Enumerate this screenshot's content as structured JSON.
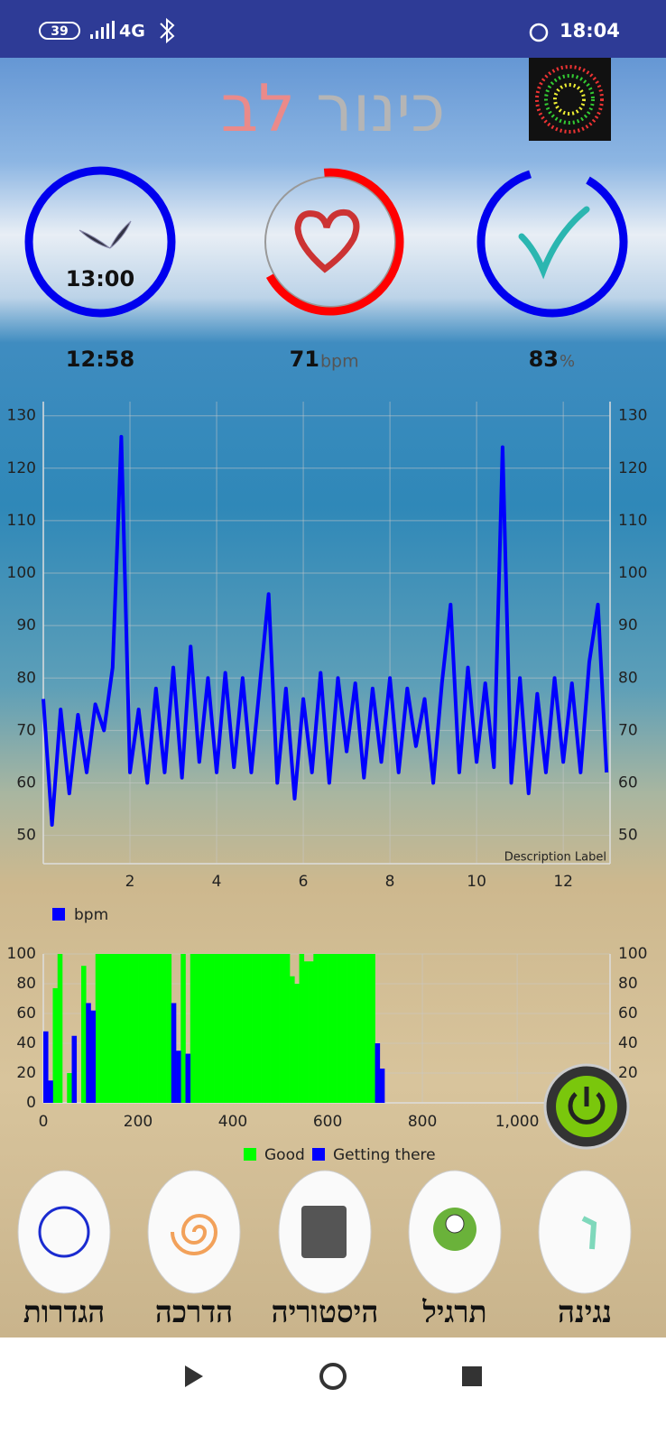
{
  "status_bar": {
    "battery": "39",
    "network": "4G",
    "time": "18:04"
  },
  "header": {
    "title_word1": "כינור",
    "title_word2": "לב"
  },
  "gauges": {
    "clock_label": "13:00",
    "clock_value": "12:58",
    "heart_value": 71,
    "heart_unit": "bpm",
    "check_value": 83,
    "check_unit": "%"
  },
  "chart_data": [
    {
      "type": "line",
      "x": [
        0,
        0.2,
        0.4,
        0.6,
        0.8,
        1.0,
        1.2,
        1.4,
        1.6,
        1.8,
        2.0,
        2.2,
        2.4,
        2.6,
        2.8,
        3.0,
        3.2,
        3.4,
        3.6,
        3.8,
        4.0,
        4.2,
        4.4,
        4.6,
        4.8,
        5.0,
        5.2,
        5.4,
        5.6,
        5.8,
        6.0,
        6.2,
        6.4,
        6.6,
        6.8,
        7.0,
        7.2,
        7.4,
        7.6,
        7.8,
        8.0,
        8.2,
        8.4,
        8.6,
        8.8,
        9.0,
        9.2,
        9.4,
        9.6,
        9.8,
        10.0,
        10.2,
        10.4,
        10.6,
        10.8,
        11.0,
        11.2,
        11.4,
        11.6,
        11.8,
        12.0,
        12.2,
        12.4,
        12.6,
        12.8,
        13.0
      ],
      "series": [
        {
          "name": "bpm",
          "color": "#0000ff",
          "values": [
            76,
            52,
            74,
            58,
            73,
            62,
            75,
            70,
            82,
            126,
            62,
            74,
            60,
            78,
            62,
            82,
            61,
            86,
            64,
            80,
            62,
            81,
            63,
            80,
            62,
            79,
            96,
            60,
            78,
            57,
            76,
            62,
            81,
            60,
            80,
            66,
            79,
            61,
            78,
            64,
            80,
            62,
            78,
            67,
            76,
            60,
            79,
            94,
            62,
            82,
            64,
            79,
            63,
            124,
            60,
            80,
            58,
            77,
            62,
            80,
            64,
            79,
            62,
            83,
            94,
            62
          ]
        }
      ],
      "xlim": [
        0,
        13.08
      ],
      "ylim": [
        44.6,
        132.7
      ],
      "xticks": [
        2,
        4,
        6,
        8,
        10,
        12
      ],
      "yticks": [
        50,
        60,
        70,
        80,
        90,
        100,
        110,
        120,
        130
      ],
      "grid": true,
      "description": "Description Label",
      "legend": "bottom-left"
    },
    {
      "type": "bar",
      "x": [
        0,
        10,
        20,
        30,
        40,
        50,
        60,
        70,
        80,
        90,
        100,
        110,
        120,
        130,
        140,
        150,
        160,
        170,
        180,
        190,
        200,
        210,
        220,
        230,
        240,
        250,
        260,
        270,
        280,
        290,
        300,
        310,
        320,
        330,
        340,
        350,
        360,
        370,
        380,
        390,
        400,
        410,
        420,
        430,
        440,
        450,
        460,
        470,
        480,
        490,
        500,
        510,
        520,
        530,
        540,
        550,
        560,
        570,
        580,
        590,
        600,
        610,
        620,
        630,
        640,
        650,
        660,
        670,
        680,
        690,
        700,
        710,
        720
      ],
      "series": [
        {
          "name": "Good",
          "color": "#00ff00",
          "values": [
            0,
            0,
            77,
            100,
            0,
            20,
            0,
            0,
            92,
            0,
            0,
            100,
            100,
            100,
            100,
            100,
            100,
            100,
            100,
            100,
            100,
            100,
            100,
            100,
            100,
            100,
            100,
            0,
            0,
            100,
            0,
            100,
            100,
            100,
            100,
            100,
            100,
            100,
            100,
            100,
            100,
            100,
            100,
            100,
            100,
            100,
            100,
            100,
            100,
            100,
            100,
            100,
            85,
            80,
            100,
            95,
            95,
            100,
            100,
            100,
            100,
            100,
            100,
            100,
            100,
            100,
            100,
            100,
            100,
            100,
            0,
            0,
            0
          ]
        },
        {
          "name": "Getting there",
          "color": "#0000ff",
          "values": [
            48,
            15,
            0,
            0,
            0,
            0,
            45,
            0,
            0,
            67,
            62,
            0,
            0,
            0,
            0,
            0,
            0,
            0,
            0,
            0,
            0,
            0,
            0,
            0,
            0,
            0,
            0,
            67,
            35,
            0,
            33,
            0,
            0,
            0,
            0,
            0,
            0,
            0,
            0,
            0,
            0,
            0,
            0,
            0,
            0,
            0,
            0,
            0,
            0,
            0,
            0,
            0,
            0,
            0,
            0,
            0,
            0,
            0,
            0,
            0,
            0,
            0,
            0,
            0,
            0,
            0,
            0,
            0,
            0,
            0,
            40,
            23,
            0
          ]
        }
      ],
      "xlim": [
        0,
        1196
      ],
      "ylim": [
        0,
        100
      ],
      "xticks": [
        0,
        200,
        400,
        600,
        800,
        {
          "value": 1000,
          "label": "1,000"
        }
      ],
      "yticks": [
        0,
        20,
        40,
        60,
        80,
        100
      ],
      "grid": true,
      "legend": "bottom"
    }
  ],
  "buttons": [
    "הגדרות",
    "הדרכה",
    "היסטוריה",
    "תרגיל",
    "נגינה"
  ]
}
